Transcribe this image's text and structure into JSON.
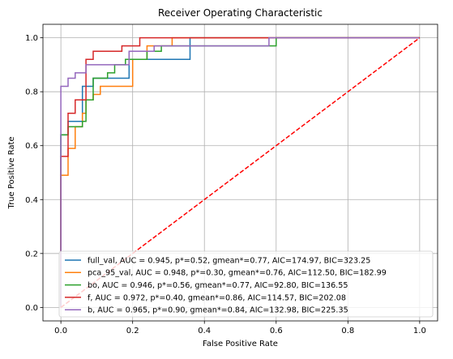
{
  "chart_data": {
    "type": "line",
    "title": "Receiver Operating Characteristic",
    "xlabel": "False Positive Rate",
    "ylabel": "True Positive Rate",
    "xlim": [
      -0.05,
      1.05
    ],
    "ylim": [
      -0.05,
      1.05
    ],
    "xticks": [
      0.0,
      0.2,
      0.4,
      0.6,
      0.8,
      1.0
    ],
    "yticks": [
      0.0,
      0.2,
      0.4,
      0.6,
      0.8,
      1.0
    ],
    "xtick_labels": [
      "0.0",
      "0.2",
      "0.4",
      "0.6",
      "0.8",
      "1.0"
    ],
    "ytick_labels": [
      "0.0",
      "0.2",
      "0.4",
      "0.6",
      "0.8",
      "1.0"
    ],
    "grid": true,
    "legend_position": "lower right",
    "series": [
      {
        "name": "full_val, AUC = 0.945, p*=0.52, gmean*=0.77, AIC=174.97, BIC=323.25",
        "color": "#1f77b4",
        "x": [
          0,
          0,
          0.02,
          0.02,
          0.06,
          0.06,
          0.09,
          0.09,
          0.13,
          0.19,
          0.19,
          0.36,
          0.36,
          1.0
        ],
        "y": [
          0,
          0.64,
          0.64,
          0.69,
          0.69,
          0.82,
          0.82,
          0.85,
          0.85,
          0.85,
          0.92,
          0.92,
          1.0,
          1.0
        ]
      },
      {
        "name": "pca_95_val, AUC = 0.948, p*=0.30, gmean*=0.76, AIC=112.50, BIC=182.99",
        "color": "#ff7f0e",
        "x": [
          0,
          0,
          0.02,
          0.02,
          0.04,
          0.04,
          0.06,
          0.06,
          0.07,
          0.07,
          0.09,
          0.09,
          0.11,
          0.11,
          0.2,
          0.2,
          0.24,
          0.24,
          0.31,
          0.31,
          1.0
        ],
        "y": [
          0,
          0.49,
          0.49,
          0.59,
          0.59,
          0.67,
          0.67,
          0.72,
          0.72,
          0.77,
          0.77,
          0.79,
          0.79,
          0.82,
          0.82,
          0.92,
          0.92,
          0.97,
          0.97,
          1.0,
          1.0
        ]
      },
      {
        "name": "bo, AUC = 0.946, p*=0.56, gmean*=0.77, AIC=92.80, BIC=136.55",
        "color": "#2ca02c",
        "x": [
          0,
          0,
          0.02,
          0.02,
          0.06,
          0.06,
          0.07,
          0.07,
          0.09,
          0.09,
          0.13,
          0.13,
          0.15,
          0.15,
          0.18,
          0.18,
          0.24,
          0.24,
          0.28,
          0.28,
          0.31,
          0.31,
          0.58,
          0.58,
          0.6,
          0.6,
          1.0
        ],
        "y": [
          0,
          0.64,
          0.64,
          0.67,
          0.67,
          0.69,
          0.69,
          0.77,
          0.77,
          0.85,
          0.85,
          0.87,
          0.87,
          0.9,
          0.9,
          0.92,
          0.92,
          0.95,
          0.95,
          0.97,
          0.97,
          0.97,
          0.97,
          0.97,
          0.97,
          1.0,
          1.0
        ]
      },
      {
        "name": "f, AUC = 0.972, p*=0.40, gmean*=0.86, AIC=114.57, BIC=202.08",
        "color": "#d62728",
        "x": [
          0,
          0,
          0.02,
          0.02,
          0.04,
          0.04,
          0.07,
          0.07,
          0.09,
          0.09,
          0.11,
          0.11,
          0.17,
          0.17,
          0.22,
          0.22,
          1.0
        ],
        "y": [
          0,
          0.56,
          0.56,
          0.72,
          0.72,
          0.77,
          0.77,
          0.92,
          0.92,
          0.95,
          0.95,
          0.95,
          0.95,
          0.97,
          0.97,
          1.0,
          1.0
        ]
      },
      {
        "name": "b, AUC = 0.965, p*=0.90, gmean*=0.84, AIC=132.98, BIC=225.35",
        "color": "#9467bd",
        "x": [
          0,
          0,
          0.02,
          0.02,
          0.04,
          0.04,
          0.06,
          0.06,
          0.07,
          0.07,
          0.19,
          0.19,
          0.26,
          0.26,
          0.58,
          0.58,
          1.0
        ],
        "y": [
          0,
          0.82,
          0.82,
          0.85,
          0.85,
          0.87,
          0.87,
          0.87,
          0.87,
          0.9,
          0.9,
          0.95,
          0.95,
          0.97,
          0.97,
          1.0,
          1.0
        ]
      },
      {
        "name": "",
        "color": "#ff0000",
        "dashed": true,
        "x": [
          0,
          1
        ],
        "y": [
          0,
          1
        ]
      }
    ]
  }
}
